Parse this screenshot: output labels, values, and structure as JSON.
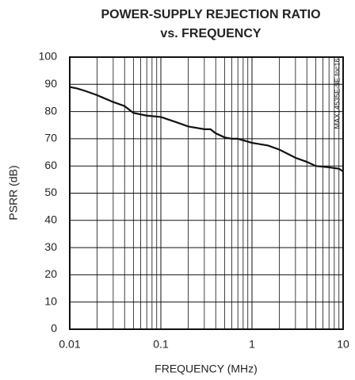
{
  "chart_data": {
    "type": "line",
    "title": [
      "POWER-SUPPLY REJECTION RATIO",
      "vs. FREQUENCY"
    ],
    "x_label": "FREQUENCY (MHz)",
    "y_label": "PSRR (dB)",
    "note": "MAX14535E-9E toc16",
    "x_scale": "log",
    "grid": true,
    "xlim": [
      0.01,
      10
    ],
    "xticks": [
      0.01,
      0.1,
      1,
      10
    ],
    "xminorticks": [
      0.02,
      0.03,
      0.04,
      0.05,
      0.06,
      0.07,
      0.08,
      0.09,
      0.2,
      0.3,
      0.4,
      0.5,
      0.6,
      0.7,
      0.8,
      0.9,
      2,
      3,
      4,
      5,
      6,
      7,
      8,
      9
    ],
    "ylim": [
      0,
      100
    ],
    "yticks": [
      0,
      10,
      20,
      30,
      40,
      50,
      60,
      70,
      80,
      90,
      100
    ],
    "series": [
      {
        "color": "#111111",
        "x": [
          0.01,
          0.012,
          0.015,
          0.02,
          0.03,
          0.04,
          0.05,
          0.07,
          0.1,
          0.15,
          0.2,
          0.3,
          0.35,
          0.4,
          0.5,
          0.6,
          0.7,
          1,
          1.5,
          2,
          3,
          4,
          5,
          7,
          9,
          10
        ],
        "values": [
          89,
          88.5,
          87.5,
          86,
          83.5,
          82,
          79.5,
          78.5,
          78,
          76,
          74.5,
          73.5,
          73.5,
          72,
          70.5,
          70,
          70,
          68.5,
          67.5,
          66,
          63,
          61.5,
          60,
          59.5,
          59,
          58
        ]
      }
    ]
  }
}
